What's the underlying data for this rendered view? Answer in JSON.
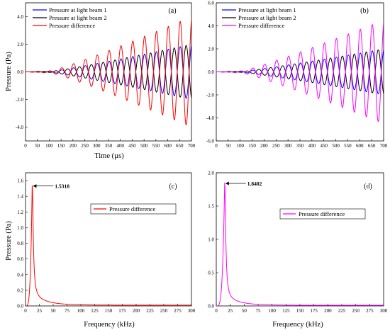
{
  "chart_data": [
    {
      "type": "line",
      "panel_label": "(a)",
      "xlabel": "Time (µs)",
      "ylabel": "Pressure (Pa)",
      "xlim": [
        0,
        700
      ],
      "ylim": [
        -5,
        5
      ],
      "xticks": [
        "0",
        "50",
        "100",
        "150",
        "200",
        "250",
        "300",
        "350",
        "400",
        "450",
        "500",
        "550",
        "600",
        "650",
        "700"
      ],
      "yticks": [
        "-4.0",
        "-2.0",
        "0.0",
        "2.0",
        "4.0"
      ],
      "yticks_values": [
        -4,
        -2,
        0,
        2,
        4
      ],
      "legend_position": "top-left",
      "period_us": 50,
      "growth_start_us": 110,
      "growth_end_us": 700,
      "series": [
        {
          "name": "Pressure at light beam 1",
          "color": "#0000ff",
          "peak_amplitude": 2.0,
          "phase": "positive"
        },
        {
          "name": "Pressure at light beam 2",
          "color": "#000000",
          "peak_amplitude": 2.0,
          "phase": "negative"
        },
        {
          "name": "Pressure difference",
          "color": "#ff0000",
          "peak_amplitude": 4.0,
          "phase": "positive"
        }
      ]
    },
    {
      "type": "line",
      "panel_label": "(b)",
      "xlabel": "",
      "ylabel": "",
      "xlim": [
        0,
        700
      ],
      "ylim": [
        -6,
        6
      ],
      "xticks": [
        "0",
        "50",
        "100",
        "150",
        "200",
        "250",
        "300",
        "350",
        "400",
        "450",
        "500",
        "550",
        "600",
        "650",
        "700"
      ],
      "yticks": [
        "-6.0",
        "-4.0",
        "-2.0",
        "0.0",
        "2.0",
        "4.0",
        "6.0"
      ],
      "yticks_values": [
        -6,
        -4,
        -2,
        0,
        2,
        4,
        6
      ],
      "legend_position": "top-left",
      "period_us": 50,
      "growth_start_us": 110,
      "growth_end_us": 700,
      "series": [
        {
          "name": "Pressure at light beam 1",
          "color": "#0000ff",
          "peak_amplitude": 2.0,
          "phase": "positive"
        },
        {
          "name": "Pressure at light beam 2",
          "color": "#000000",
          "peak_amplitude": 2.0,
          "phase": "negative"
        },
        {
          "name": "Pressure difference",
          "color": "#ff00ff",
          "peak_amplitude": 4.5,
          "phase": "positive"
        }
      ]
    },
    {
      "type": "line",
      "panel_label": "(c)",
      "xlabel": "Frequency (kHz)",
      "ylabel": "Pressure (Pa)",
      "xlim": [
        0,
        300
      ],
      "ylim": [
        0,
        1.7
      ],
      "xticks": [
        "0",
        "25",
        "50",
        "75",
        "100",
        "125",
        "150",
        "175",
        "200",
        "225",
        "250",
        "275",
        "300"
      ],
      "yticks": [
        "0.0",
        "0.2",
        "0.4",
        "0.6",
        "0.8",
        "1.0",
        "1.2",
        "1.4",
        "1.6"
      ],
      "yticks_values": [
        0,
        0.2,
        0.4,
        0.6,
        0.8,
        1.0,
        1.2,
        1.4,
        1.6
      ],
      "legend_position": "center-right",
      "peak_x": 12,
      "peak_y": 1.5318,
      "peak_label": "1.5318",
      "series": [
        {
          "name": "Pressure difference",
          "color": "#ff0000"
        }
      ]
    },
    {
      "type": "line",
      "panel_label": "(d)",
      "xlabel": "Frequency (kHz)",
      "ylabel": "",
      "xlim": [
        0,
        300
      ],
      "ylim": [
        0,
        2.0
      ],
      "xticks": [
        "0",
        "25",
        "50",
        "75",
        "100",
        "125",
        "150",
        "175",
        "200",
        "225",
        "250",
        "275",
        "300"
      ],
      "yticks": [
        "0.0",
        "0.5",
        "1.0",
        "1.5",
        "2.0"
      ],
      "yticks_values": [
        0,
        0.5,
        1.0,
        1.5,
        2.0
      ],
      "legend_position": "center-right",
      "peak_x": 15,
      "peak_y": 1.8402,
      "peak_label": "1.8402",
      "series": [
        {
          "name": "Pressure difference",
          "color": "#ff00ff"
        }
      ]
    }
  ]
}
